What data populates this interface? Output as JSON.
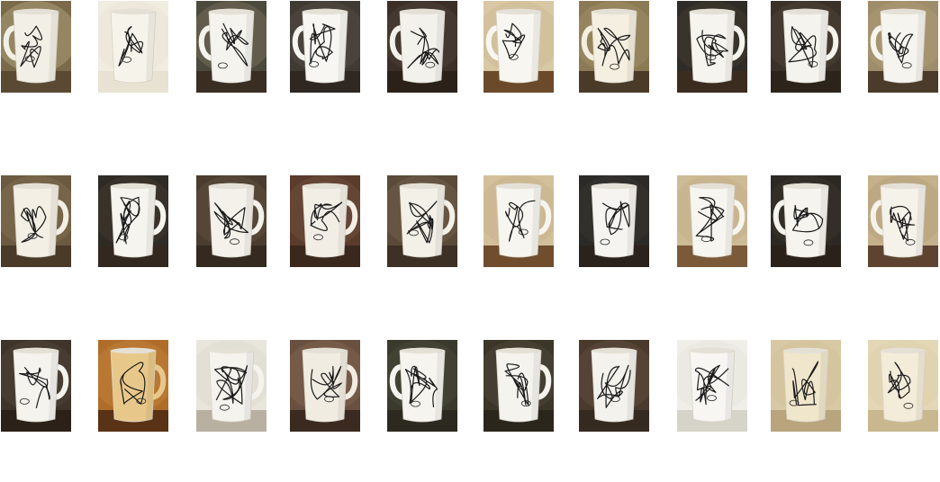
{
  "gallery": {
    "rows": [
      {
        "tiles": [
          {
            "bg": "#7a6a4a",
            "table": "#5a4a33",
            "mug": "#f2efe6",
            "handle": "left",
            "tone": "#c9b991"
          },
          {
            "bg": "#f0ecdf",
            "table": "#e8e2d2",
            "mug": "#f6f3ea",
            "handle": "none",
            "tone": "#e9e3d3"
          },
          {
            "bg": "#4c4a3c",
            "table": "#3a2e22",
            "mug": "#f5f3ee",
            "handle": "left",
            "tone": "#8a7f66"
          },
          {
            "bg": "#403a35",
            "table": "#2f2722",
            "mug": "#f7f6f2",
            "handle": "left",
            "tone": "#5e574e"
          },
          {
            "bg": "#3b2f28",
            "table": "#2c2119",
            "mug": "#f3f1ec",
            "handle": "left",
            "tone": "#584a3e"
          },
          {
            "bg": "#d9c8a5",
            "table": "#6b4a2b",
            "mug": "#f8f6f0",
            "handle": "left",
            "tone": "#c8b38c"
          },
          {
            "bg": "#8a7a55",
            "table": "#4a3a28",
            "mug": "#f4efe0",
            "handle": "left",
            "tone": "#a8976e"
          },
          {
            "bg": "#2f2b26",
            "table": "#3b2c20",
            "mug": "#f6f4ee",
            "handle": "right",
            "tone": "#4a4137"
          },
          {
            "bg": "#3a3128",
            "table": "#2c231b",
            "mug": "#f5f3ee",
            "handle": "right",
            "tone": "#5a4c3e"
          },
          {
            "bg": "#9e8d6a",
            "table": "#4b3b2a",
            "mug": "#f6f4ee",
            "handle": "left",
            "tone": "#b5a47f"
          }
        ]
      },
      {
        "tiles": [
          {
            "bg": "#6b5a40",
            "table": "#4a3a28",
            "mug": "#f3efe5",
            "handle": "right",
            "tone": "#8f7c5c"
          },
          {
            "bg": "#2e2a25",
            "table": "#332820",
            "mug": "#f6f4ef",
            "handle": "right",
            "tone": "#4a4237"
          },
          {
            "bg": "#4a3d30",
            "table": "#352a20",
            "mug": "#f4f1ea",
            "handle": "right",
            "tone": "#6a5a48"
          },
          {
            "bg": "#5a3b2c",
            "table": "#3b281d",
            "mug": "#f2eee6",
            "handle": "right",
            "tone": "#7a5846"
          },
          {
            "bg": "#5a4a38",
            "table": "#3d3024",
            "mug": "#f3f0e8",
            "handle": "right",
            "tone": "#7b6a55"
          },
          {
            "bg": "#d3c09a",
            "table": "#6f4d2d",
            "mug": "#f7f5ef",
            "handle": "right",
            "tone": "#bfab86"
          },
          {
            "bg": "#2c2a28",
            "table": "#2a221c",
            "mug": "#f5f4f0",
            "handle": "none",
            "tone": "#3e3b37"
          },
          {
            "bg": "#cdbb95",
            "table": "#7a5a39",
            "mug": "#f7f5ef",
            "handle": "right",
            "tone": "#c0ad87"
          },
          {
            "bg": "#2c2823",
            "table": "#2a211a",
            "mug": "#f6f4ef",
            "handle": "left",
            "tone": "#423a31"
          },
          {
            "bg": "#c4b18b",
            "table": "#5e4430",
            "mug": "#f5f2ea",
            "handle": "left",
            "tone": "#b09c78"
          }
        ]
      },
      {
        "tiles": [
          {
            "bg": "#3e342a",
            "table": "#2b2119",
            "mug": "#f5f3ee",
            "handle": "right",
            "tone": "#5a4d40"
          },
          {
            "bg": "#b06d2a",
            "table": "#5a3216",
            "mug": "#e8c88a",
            "handle": "right",
            "tone": "#c98a45"
          },
          {
            "bg": "#e8e6dc",
            "table": "#b8b1a2",
            "mug": "#f4f3ee",
            "handle": "right",
            "tone": "#d6d2c6"
          },
          {
            "bg": "#6a5040",
            "table": "#3a2a20",
            "mug": "#f1ece2",
            "handle": "right",
            "tone": "#8a6c58"
          },
          {
            "bg": "#3a3a2c",
            "table": "#2c2a20",
            "mug": "#f5f4ef",
            "handle": "left",
            "tone": "#545442"
          },
          {
            "bg": "#3b3628",
            "table": "#2b261c",
            "mug": "#f4f3ee",
            "handle": "right",
            "tone": "#575140"
          },
          {
            "bg": "#4a3a2c",
            "table": "#352a20",
            "mug": "#f4f2ed",
            "handle": "none",
            "tone": "#6a584a"
          },
          {
            "bg": "#efeee9",
            "table": "#d6d3c9",
            "mug": "#f7f6f2",
            "handle": "none",
            "tone": "#e4e1d8"
          },
          {
            "bg": "#d8c9a5",
            "table": "#b8a57d",
            "mug": "#f0e6cc",
            "handle": "none",
            "tone": "#d0be96"
          },
          {
            "bg": "#e3d7b6",
            "table": "#c9b88f",
            "mug": "#f3ecd8",
            "handle": "none",
            "tone": "#d9cba5"
          }
        ]
      }
    ]
  }
}
